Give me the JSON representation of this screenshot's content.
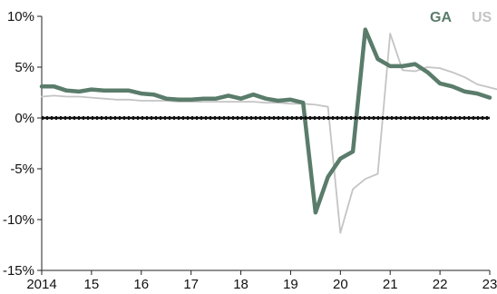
{
  "chart_data": {
    "type": "line",
    "title": "",
    "xlabel": "",
    "ylabel": "",
    "ylim": [
      -15,
      10
    ],
    "xlim": [
      2014,
      2023
    ],
    "yticks": [
      -15,
      -10,
      -5,
      0,
      5,
      10
    ],
    "ytick_labels": [
      "-15%",
      "-10%",
      "-5%",
      "0%",
      "5%",
      "10%"
    ],
    "xticks": [
      2014,
      2015,
      2016,
      2017,
      2018,
      2019,
      2020,
      2021,
      2022,
      2023
    ],
    "xtick_labels": [
      "2014",
      "15",
      "16",
      "17",
      "18",
      "19",
      "20",
      "21",
      "22",
      "23"
    ],
    "grid": false,
    "legend_position": "top-right",
    "zero_line": true,
    "series": [
      {
        "name": "US",
        "color": "#c4c4c4",
        "points": [
          [
            2014.0,
            2.1
          ],
          [
            2014.25,
            2.2
          ],
          [
            2014.5,
            2.1
          ],
          [
            2014.75,
            2.1
          ],
          [
            2015.0,
            2.0
          ],
          [
            2015.25,
            1.9
          ],
          [
            2015.5,
            1.8
          ],
          [
            2015.75,
            1.8
          ],
          [
            2016.0,
            1.7
          ],
          [
            2016.25,
            1.7
          ],
          [
            2016.5,
            1.7
          ],
          [
            2016.75,
            1.6
          ],
          [
            2017.0,
            1.6
          ],
          [
            2017.25,
            1.6
          ],
          [
            2017.5,
            1.6
          ],
          [
            2017.75,
            1.6
          ],
          [
            2018.0,
            1.6
          ],
          [
            2018.25,
            1.6
          ],
          [
            2018.5,
            1.5
          ],
          [
            2018.75,
            1.5
          ],
          [
            2019.0,
            1.4
          ],
          [
            2019.25,
            1.4
          ],
          [
            2019.5,
            1.3
          ],
          [
            2019.75,
            1.1
          ],
          [
            2020.0,
            -11.3
          ],
          [
            2020.25,
            -7.0
          ],
          [
            2020.5,
            -6.0
          ],
          [
            2020.75,
            -5.5
          ],
          [
            2021.0,
            8.3
          ],
          [
            2021.25,
            4.7
          ],
          [
            2021.5,
            4.6
          ],
          [
            2021.75,
            5.0
          ],
          [
            2022.0,
            4.9
          ],
          [
            2022.25,
            4.5
          ],
          [
            2022.5,
            4.0
          ],
          [
            2022.75,
            3.3
          ],
          [
            2023.0,
            3.0
          ],
          [
            2023.25,
            2.7
          ],
          [
            2023.5,
            2.6
          ],
          [
            2023.75,
            2.5
          ]
        ]
      },
      {
        "name": "GA",
        "color": "#5a7c6b",
        "points": [
          [
            2014.0,
            3.1
          ],
          [
            2014.25,
            3.1
          ],
          [
            2014.5,
            2.7
          ],
          [
            2014.75,
            2.6
          ],
          [
            2015.0,
            2.8
          ],
          [
            2015.25,
            2.7
          ],
          [
            2015.5,
            2.7
          ],
          [
            2015.75,
            2.7
          ],
          [
            2016.0,
            2.4
          ],
          [
            2016.25,
            2.3
          ],
          [
            2016.5,
            1.9
          ],
          [
            2016.75,
            1.8
          ],
          [
            2017.0,
            1.8
          ],
          [
            2017.25,
            1.9
          ],
          [
            2017.5,
            1.9
          ],
          [
            2017.75,
            2.2
          ],
          [
            2018.0,
            1.9
          ],
          [
            2018.25,
            2.3
          ],
          [
            2018.5,
            1.9
          ],
          [
            2018.75,
            1.7
          ],
          [
            2019.0,
            1.8
          ],
          [
            2019.25,
            1.5
          ],
          [
            2019.5,
            -9.3
          ],
          [
            2019.75,
            -5.8
          ],
          [
            2020.0,
            -4.0
          ],
          [
            2020.25,
            -3.3
          ],
          [
            2020.5,
            8.7
          ],
          [
            2020.75,
            5.8
          ],
          [
            2021.0,
            5.1
          ],
          [
            2021.25,
            5.1
          ],
          [
            2021.5,
            5.3
          ],
          [
            2021.75,
            4.5
          ],
          [
            2022.0,
            3.4
          ],
          [
            2022.25,
            3.1
          ],
          [
            2022.5,
            2.6
          ],
          [
            2022.75,
            2.4
          ],
          [
            2023.0,
            2.0
          ]
        ]
      }
    ]
  }
}
